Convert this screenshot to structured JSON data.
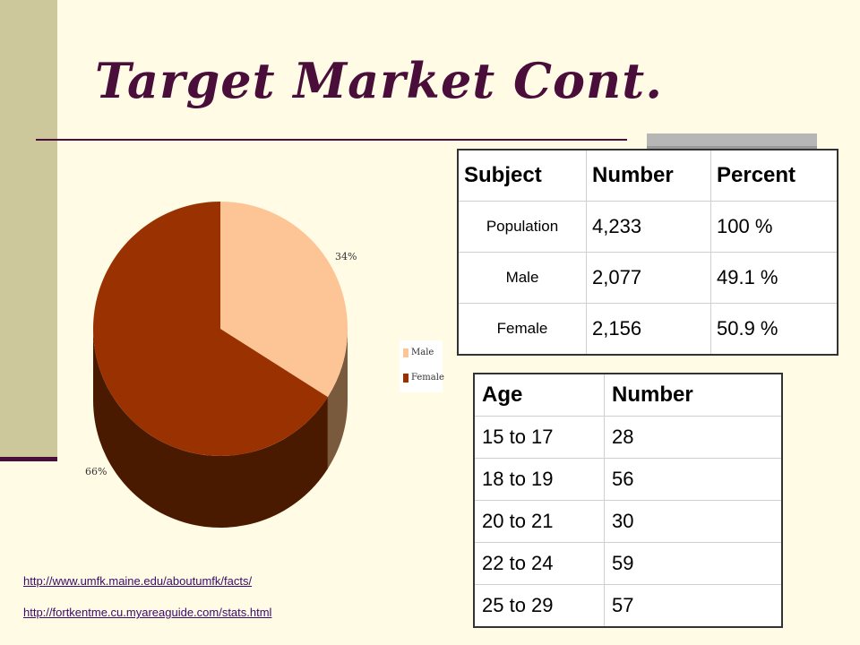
{
  "slide": {
    "title": "Target Market Cont.",
    "links": [
      "http://www.umfk.maine.edu/aboutumfk/facts/",
      "http://fortkentme.cu.myareaguide.com/stats.html"
    ]
  },
  "chart_data": {
    "type": "pie",
    "title": "",
    "slices": [
      {
        "name": "Male",
        "value": 34,
        "label": "34%",
        "color": "#fdc596",
        "side_color": "#7a5a3d"
      },
      {
        "name": "Female",
        "value": 66,
        "label": "66%",
        "color": "#993200",
        "side_color": "#4a1a00"
      }
    ],
    "legend": {
      "position": "right",
      "entries": [
        "Male",
        "Female"
      ]
    },
    "style": "3d"
  },
  "table_population": {
    "headers": [
      "Subject",
      "Number",
      "Percent"
    ],
    "rows": [
      {
        "subject": "Population",
        "number": "4,233",
        "percent": "100 %"
      },
      {
        "subject": "Male",
        "number": "2,077",
        "percent": "49.1 %"
      },
      {
        "subject": "Female",
        "number": "2,156",
        "percent": "50.9 %"
      }
    ]
  },
  "table_age": {
    "headers": [
      "Age",
      "Number"
    ],
    "rows": [
      {
        "age": "15 to 17",
        "number": "28"
      },
      {
        "age": "18 to 19",
        "number": "56"
      },
      {
        "age": "20 to 21",
        "number": "30"
      },
      {
        "age": "22 to 24",
        "number": "59"
      },
      {
        "age": "25 to 29",
        "number": "57"
      }
    ]
  }
}
